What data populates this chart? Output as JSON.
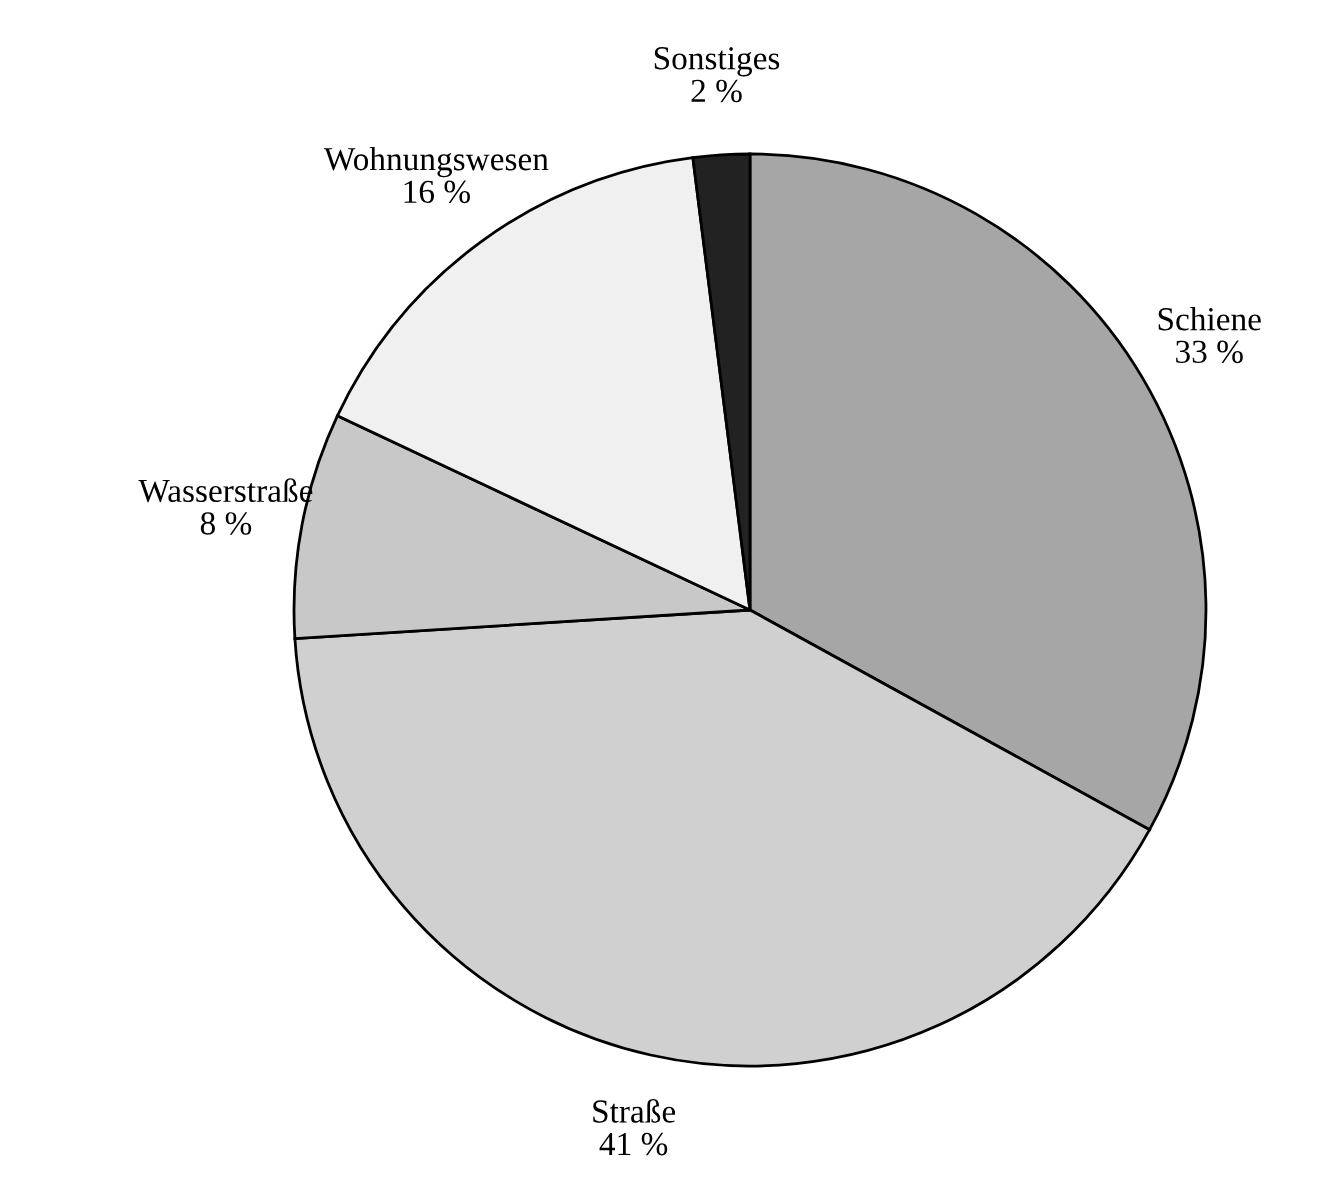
{
  "chart_data": {
    "type": "pie",
    "categories": [
      "Schiene",
      "Straße",
      "Wasserstraße",
      "Wohnungswesen",
      "Sonstiges"
    ],
    "values": [
      33,
      41,
      8,
      16,
      2
    ],
    "colors": [
      "#a6a6a6",
      "#d0d0d0",
      "#c8c8c8",
      "#f0f0f0",
      "#222222"
    ],
    "value_labels": [
      "33 %",
      "41 %",
      "8 %",
      "16 %",
      "2 %"
    ],
    "legend": false
  }
}
